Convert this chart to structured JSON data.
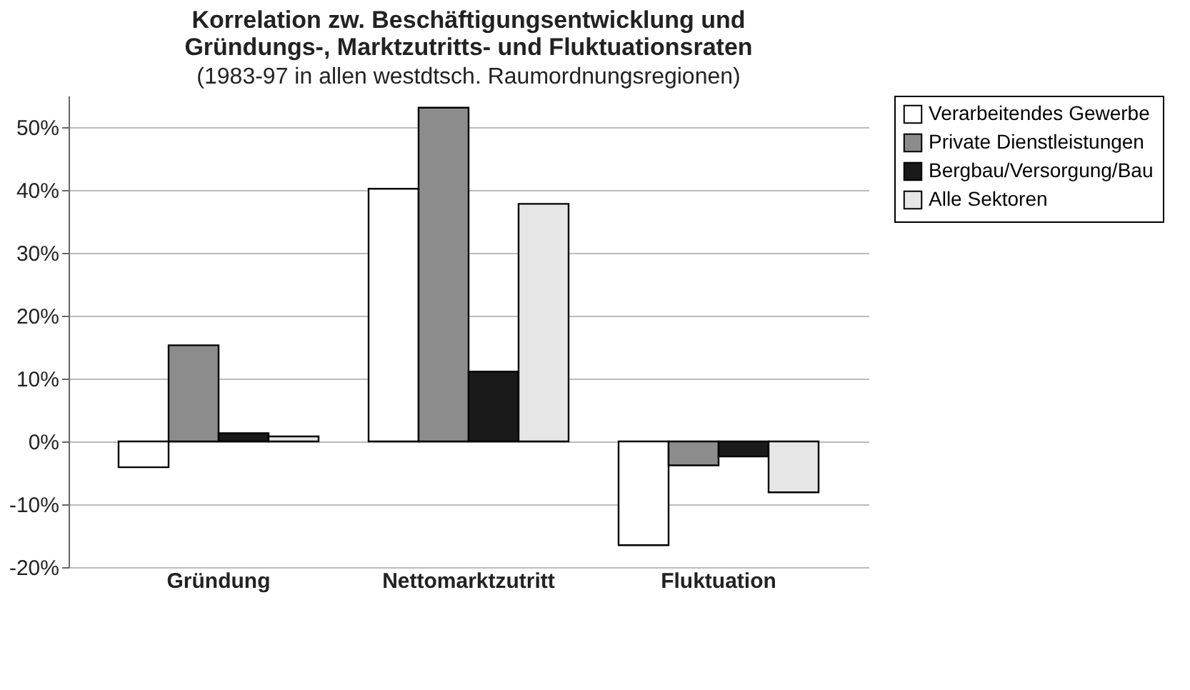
{
  "chart_data": {
    "type": "bar",
    "title": [
      "Korrelation zw. Beschäftigungsentwicklung und",
      "Gründungs-, Marktzutritts- und Fluktuationsraten"
    ],
    "subtitle": "(1983-97 in allen westdtsch. Raumordnungsregionen)",
    "categories": [
      "Gründung",
      "Nettomarktzutritt",
      "Fluktuation"
    ],
    "series": [
      {
        "name": "Verarbeitendes Gewerbe",
        "color": "#ffffff",
        "values": [
          -4.1,
          40.2,
          -16.5
        ]
      },
      {
        "name": "Private Dienstleistungen",
        "color": "#8c8c8c",
        "values": [
          15.3,
          53.1,
          -3.8
        ]
      },
      {
        "name": "Bergbau/Versorgung/Bau",
        "color": "#1a1a1a",
        "values": [
          1.3,
          11.1,
          -2.4
        ]
      },
      {
        "name": "Alle Sektoren",
        "color": "#e6e6e6",
        "values": [
          0.8,
          37.8,
          -8.1
        ]
      }
    ],
    "ylim": [
      -20,
      55
    ],
    "yticks": [
      {
        "value": -20,
        "label": "-20%"
      },
      {
        "value": -10,
        "label": "-10%"
      },
      {
        "value": 0,
        "label": "0%"
      },
      {
        "value": 10,
        "label": "10%"
      },
      {
        "value": 20,
        "label": "20%"
      },
      {
        "value": 30,
        "label": "30%"
      },
      {
        "value": 40,
        "label": "40%"
      },
      {
        "value": 50,
        "label": "50%"
      }
    ],
    "grid": "y",
    "legend": "right"
  }
}
